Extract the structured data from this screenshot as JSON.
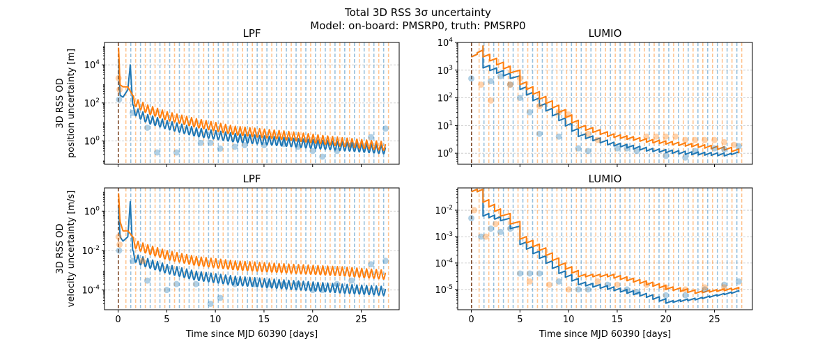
{
  "figure": {
    "title_line1": "Total 3D RSS 3σ uncertainty",
    "title_line2": "Model: on-board: PMSRP0, truth: PMSRP0"
  },
  "chart_data": [
    {
      "type": "line",
      "title": "LPF",
      "ylabel": [
        "3D RSS OD",
        "position uncertainty [m]"
      ],
      "xlabel": "",
      "yscale": "log",
      "xlim": [
        -1.4,
        28.9
      ],
      "ylim": [
        0.06,
        150000
      ],
      "xticks": [
        0,
        5,
        10,
        15,
        20,
        25
      ],
      "xtick_labels": [
        "",
        "",
        "",
        "",
        "",
        ""
      ],
      "yticks": [
        1,
        100,
        10000
      ],
      "ytick_labels": [
        "10^0",
        "10^2",
        "10^4"
      ],
      "grid_y": true,
      "series": [
        {
          "color": "#1f77b4",
          "pattern": "sawtooth",
          "envelope_x": [
            0.05,
            0.2,
            0.5,
            1.0,
            1.25,
            1.5,
            2,
            3,
            5,
            8,
            12,
            18,
            23,
            27.5
          ],
          "envelope_y": [
            20000,
            250,
            200,
            500,
            10000,
            80,
            50,
            25,
            12,
            5,
            2.5,
            1.4,
            0.9,
            0.6
          ]
        },
        {
          "color": "#ff7f0e",
          "pattern": "sawtooth",
          "envelope_x": [
            0.05,
            0.2,
            0.5,
            1.0,
            1.5,
            2,
            3,
            5,
            8,
            12,
            18,
            23,
            27.5
          ],
          "envelope_y": [
            80000,
            900,
            700,
            700,
            250,
            150,
            80,
            35,
            15,
            6,
            3,
            1.5,
            0.9
          ]
        }
      ],
      "scatter": [
        {
          "color": "#1f77b4",
          "x": [
            0.1,
            1.5,
            3,
            4,
            6,
            8.5,
            9.5,
            10.5,
            12,
            13,
            15,
            17,
            18.5,
            20,
            21,
            22.5,
            24,
            26,
            27.5
          ],
          "y": [
            150,
            30,
            5,
            0.25,
            0.25,
            0.8,
            0.8,
            0.4,
            0.5,
            0.6,
            0.6,
            0.7,
            0.5,
            0.3,
            0.15,
            0.3,
            0.6,
            1.6,
            4.5
          ]
        },
        {
          "color": "#ff7f0e",
          "x": [
            0.05,
            0.15
          ],
          "y": [
            2000,
            500
          ]
        }
      ]
    },
    {
      "type": "line",
      "title": "LUMIO",
      "ylabel": [],
      "xlabel": "",
      "yscale": "log",
      "xlim": [
        -1.4,
        28.9
      ],
      "ylim": [
        0.4,
        10000
      ],
      "xticks": [
        0,
        5,
        10,
        15,
        20,
        25
      ],
      "xtick_labels": [
        "",
        "",
        "",
        "",
        "",
        ""
      ],
      "yticks": [
        1,
        10,
        100,
        1000,
        10000
      ],
      "ytick_labels": [
        "10^0",
        "10^1",
        "10^2",
        "10^3",
        "10^4"
      ],
      "grid_y": true,
      "series": [
        {
          "color": "#1f77b4",
          "pattern": "steps",
          "x": [
            0,
            1.2,
            1.2,
            4,
            5,
            7,
            9,
            11,
            14,
            18,
            22,
            26,
            27.5
          ],
          "y": [
            3000,
            6000,
            1200,
            500,
            200,
            50,
            15,
            4,
            2,
            1.2,
            0.9,
            0.8,
            1.0
          ]
        },
        {
          "color": "#ff7f0e",
          "pattern": "steps",
          "x": [
            0,
            1.2,
            1.2,
            4,
            5,
            7,
            9,
            11,
            14,
            18,
            22,
            26,
            27.5
          ],
          "y": [
            3000,
            6000,
            3000,
            800,
            300,
            90,
            30,
            8,
            4,
            2.5,
            1.8,
            1.3,
            1.0
          ]
        }
      ],
      "scatter": [
        {
          "color": "#1f77b4",
          "x": [
            0,
            2,
            3,
            4,
            5,
            6,
            7,
            9,
            11,
            12,
            15,
            16,
            17,
            20,
            22,
            23,
            25,
            26,
            27.5
          ],
          "y": [
            500,
            400,
            600,
            300,
            100,
            30,
            5,
            4,
            1.5,
            1.2,
            1.5,
            1.5,
            1.2,
            0.8,
            0.7,
            1.2,
            1.5,
            1.4,
            1.8
          ]
        },
        {
          "color": "#ff7f0e",
          "x": [
            1,
            2,
            4,
            5,
            7,
            9,
            10,
            12,
            13,
            18,
            19,
            20,
            21,
            22,
            23,
            24,
            25,
            26,
            27
          ],
          "y": [
            300,
            80,
            300,
            500,
            50,
            30,
            25,
            5,
            3,
            4,
            4,
            4,
            4,
            3,
            3,
            3,
            3,
            2.5,
            2
          ]
        }
      ]
    },
    {
      "type": "line",
      "title": "LPF",
      "ylabel": [
        "3D RSS OD",
        "velocity uncertainty [m/s]"
      ],
      "xlabel": "Time since MJD 60390 [days]",
      "yscale": "log",
      "xlim": [
        -1.4,
        28.9
      ],
      "ylim": [
        1e-05,
        15
      ],
      "xticks": [
        0,
        5,
        10,
        15,
        20,
        25
      ],
      "xtick_labels": [
        "0",
        "5",
        "10",
        "15",
        "20",
        "25"
      ],
      "yticks": [
        0.0001,
        0.01,
        1
      ],
      "ytick_labels": [
        "10^-4",
        "10^-2",
        "10^0"
      ],
      "grid_y": true,
      "series": [
        {
          "color": "#1f77b4",
          "pattern": "sawtooth",
          "envelope_x": [
            0.05,
            0.2,
            0.5,
            1.0,
            1.25,
            1.5,
            2,
            3,
            5,
            8,
            12,
            18,
            23,
            27.5
          ],
          "envelope_y": [
            1.5,
            0.05,
            0.03,
            0.05,
            3,
            0.01,
            0.006,
            0.004,
            0.002,
            0.0009,
            0.0005,
            0.0003,
            0.0002,
            0.00015
          ]
        },
        {
          "color": "#ff7f0e",
          "pattern": "sawtooth",
          "envelope_x": [
            0.05,
            0.2,
            0.5,
            1.0,
            1.5,
            2,
            3,
            5,
            8,
            12,
            18,
            23,
            27.5
          ],
          "envelope_y": [
            8,
            0.3,
            0.1,
            0.1,
            0.05,
            0.03,
            0.02,
            0.01,
            0.005,
            0.003,
            0.002,
            0.0015,
            0.001
          ]
        }
      ],
      "scatter": [
        {
          "color": "#1f77b4",
          "x": [
            0.1,
            1.5,
            3,
            5,
            6,
            8,
            9.5,
            10.5,
            12,
            14,
            15.5,
            17,
            18.5,
            20,
            21,
            22.5,
            24,
            26,
            27.5
          ],
          "y": [
            0.01,
            0.003,
            0.0003,
            0.0001,
            0.0002,
            0.0002,
            2e-05,
            4e-05,
            0.0002,
            0.0002,
            0.0002,
            0.0002,
            0.0002,
            0.0001,
            0.0001,
            0.0002,
            0.0003,
            0.002,
            0.003
          ]
        },
        {
          "color": "#ff7f0e",
          "x": [
            0.05,
            0.15,
            2.5
          ],
          "y": [
            0.05,
            0.02,
            0.003
          ]
        }
      ]
    },
    {
      "type": "line",
      "title": "LUMIO",
      "ylabel": [],
      "xlabel": "Time since MJD 60390 [days]",
      "yscale": "log",
      "xlim": [
        -1.4,
        28.9
      ],
      "ylim": [
        1.7e-06,
        0.07
      ],
      "xticks": [
        0,
        5,
        10,
        15,
        20,
        25
      ],
      "xtick_labels": [
        "0",
        "5",
        "10",
        "15",
        "20",
        "25"
      ],
      "yticks": [
        1e-05,
        0.0001,
        0.001,
        0.01
      ],
      "ytick_labels": [
        "10^-5",
        "10^-4",
        "10^-3",
        "10^-2"
      ],
      "grid_y": true,
      "series": [
        {
          "color": "#1f77b4",
          "pattern": "steps",
          "x": [
            0,
            1.2,
            1.2,
            3,
            4,
            5,
            7,
            9,
            11,
            14,
            18,
            20,
            23,
            27.5
          ],
          "y": [
            0.05,
            0.05,
            0.006,
            0.004,
            0.002,
            0.0005,
            0.00015,
            4e-05,
            1.5e-05,
            1e-05,
            5e-06,
            3e-06,
            4e-06,
            8e-06
          ]
        },
        {
          "color": "#ff7f0e",
          "pattern": "steps",
          "x": [
            0,
            1.2,
            1.2,
            3,
            4,
            5,
            7,
            9,
            11,
            14,
            18,
            20,
            23,
            27.5
          ],
          "y": [
            0.05,
            0.05,
            0.02,
            0.006,
            0.003,
            0.0008,
            0.0003,
            8e-05,
            3e-05,
            3e-05,
            1.5e-05,
            1e-05,
            7e-06,
            1e-05
          ]
        }
      ],
      "scatter": [
        {
          "color": "#1f77b4",
          "x": [
            0,
            1,
            2,
            3,
            4,
            5,
            6,
            7,
            9,
            11,
            12,
            14,
            16,
            17,
            20,
            22,
            24,
            26,
            27.5
          ],
          "y": [
            0.005,
            0.001,
            0.002,
            0.0015,
            0.002,
            4e-05,
            4e-05,
            4e-05,
            2e-05,
            1e-05,
            1e-05,
            1.5e-05,
            1e-05,
            8e-06,
            6e-06,
            6e-06,
            1e-05,
            1.5e-05,
            2e-05
          ]
        },
        {
          "color": "#ff7f0e",
          "x": [
            0.3,
            1.5,
            2.5,
            6,
            8,
            10,
            13,
            15,
            18,
            20,
            22,
            24,
            26
          ],
          "y": [
            0.01,
            0.001,
            0.003,
            2e-05,
            1.5e-05,
            1e-05,
            2e-05,
            1.5e-05,
            1.5e-05,
            1.2e-05,
            1e-05,
            1.2e-05,
            1.2e-05
          ]
        }
      ]
    }
  ]
}
